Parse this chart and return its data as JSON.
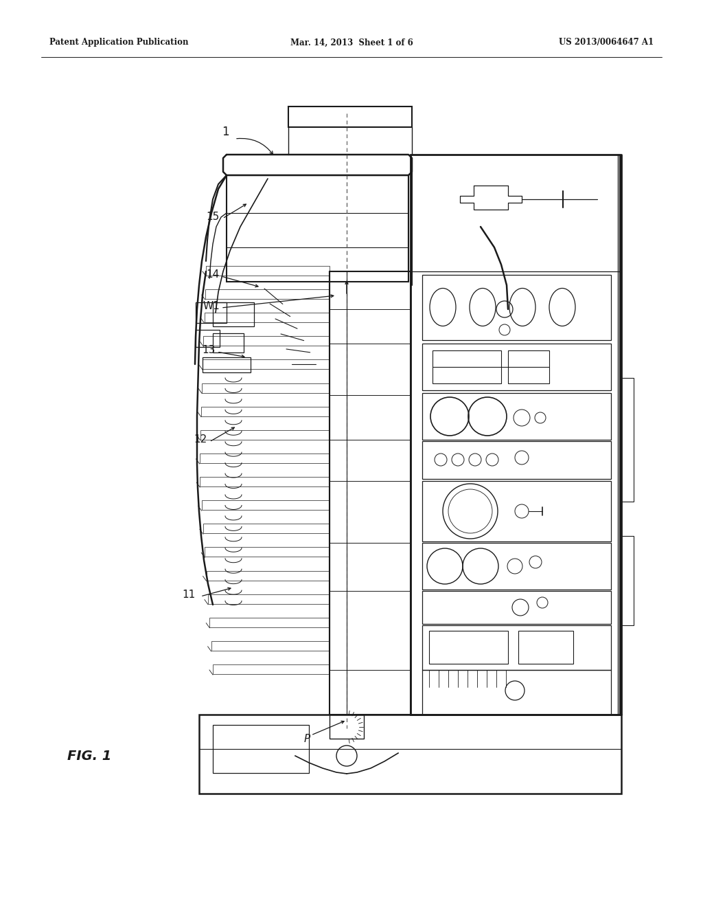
{
  "background_color": "#ffffff",
  "header_left": "Patent Application Publication",
  "header_center": "Mar. 14, 2013  Sheet 1 of 6",
  "header_right": "US 2013/0064647 A1",
  "figure_label": "FIG. 1",
  "line_color": "#1a1a1a",
  "header_fontsize": 8.5,
  "label_fontsize": 10.5
}
